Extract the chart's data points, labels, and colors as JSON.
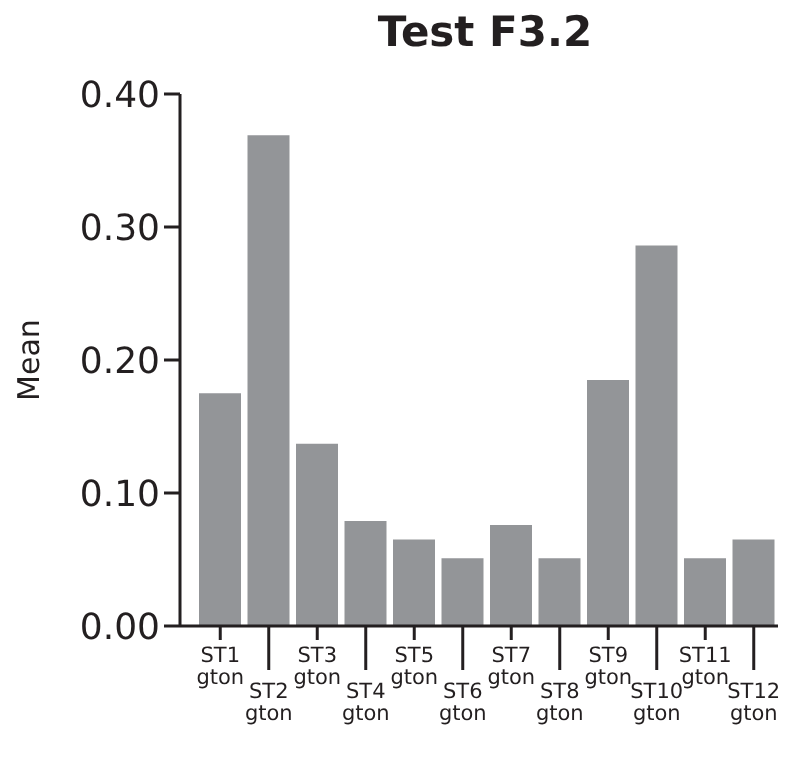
{
  "chart_data": {
    "type": "bar",
    "title": "Test F3.2",
    "ylabel": "Mean",
    "categories": [
      "ST1 gton",
      "ST2 gton",
      "ST3 gton",
      "ST4 gton",
      "ST5 gton",
      "ST6 gton",
      "ST7 gton",
      "ST8 gton",
      "ST9 gton",
      "ST10 gton",
      "ST11 gton",
      "ST12 gton"
    ],
    "values": [
      0.175,
      0.369,
      0.137,
      0.079,
      0.065,
      0.051,
      0.076,
      0.051,
      0.185,
      0.286,
      0.051,
      0.065
    ],
    "color": "#939598",
    "ylim": [
      0,
      0.4
    ],
    "yticks": [
      {
        "value": 0,
        "label": "0.00"
      },
      {
        "value": 0.1,
        "label": "0.10"
      },
      {
        "value": 0.2,
        "label": "0.20"
      },
      {
        "value": 0.3,
        "label": "0.30"
      },
      {
        "value": 0.4,
        "label": "0.40"
      }
    ],
    "grid": false
  }
}
